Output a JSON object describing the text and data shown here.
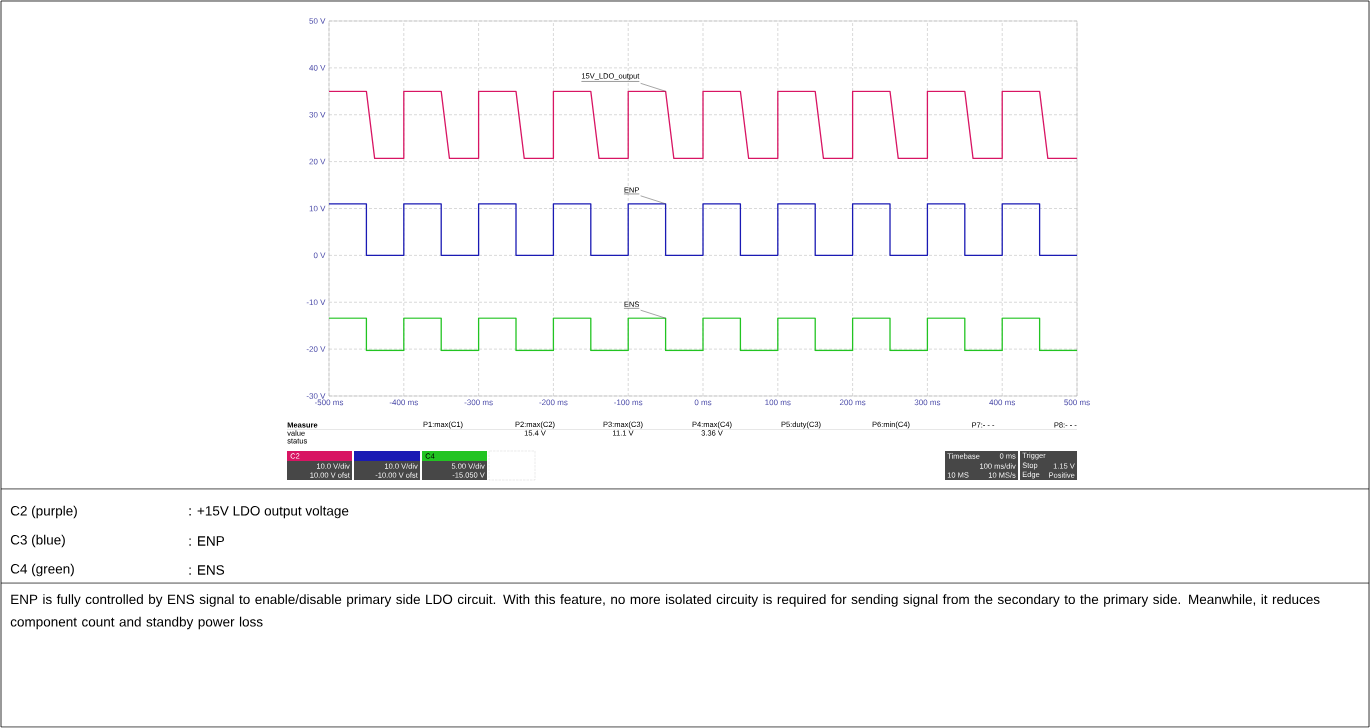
{
  "chart_data": {
    "type": "line",
    "series": [
      {
        "name": "15V_LDO_output",
        "color": "#d81563",
        "x": [
          -500,
          -450,
          -439,
          -400,
          -400,
          -350,
          -339,
          -300,
          -300,
          -250,
          -239,
          -200,
          -200,
          -150,
          -139,
          -100,
          -100,
          -50,
          -39,
          0,
          0,
          50,
          61,
          100,
          100,
          150,
          161,
          200,
          200,
          250,
          261,
          300,
          300,
          350,
          361,
          400,
          400,
          450,
          461,
          500
        ],
        "values": [
          35,
          35,
          20.7,
          20.7,
          35,
          35,
          20.7,
          20.7,
          35,
          35,
          20.7,
          20.7,
          35,
          35,
          20.7,
          20.7,
          35,
          35,
          20.7,
          20.7,
          35,
          35,
          20.7,
          20.7,
          35,
          35,
          20.7,
          20.7,
          35,
          35,
          20.7,
          20.7,
          35,
          35,
          20.7,
          20.7,
          35,
          35,
          20.7,
          20.7
        ]
      },
      {
        "name": "ENP",
        "color": "#1a1ab4",
        "x": [
          -500,
          -450,
          -450,
          -400,
          -400,
          -350,
          -350,
          -300,
          -300,
          -250,
          -250,
          -200,
          -200,
          -150,
          -150,
          -100,
          -100,
          -50,
          -50,
          0,
          0,
          50,
          50,
          100,
          100,
          150,
          150,
          200,
          200,
          250,
          250,
          300,
          300,
          350,
          350,
          400,
          400,
          450,
          450,
          500
        ],
        "values": [
          11,
          11,
          0,
          0,
          11,
          11,
          0,
          0,
          11,
          11,
          0,
          0,
          11,
          11,
          0,
          0,
          11,
          11,
          0,
          0,
          11,
          11,
          0,
          0,
          11,
          11,
          0,
          0,
          11,
          11,
          0,
          0,
          11,
          11,
          0,
          0,
          11,
          11,
          0,
          0
        ]
      },
      {
        "name": "ENS",
        "color": "#22c422",
        "x": [
          -500,
          -450,
          -450,
          -400,
          -400,
          -350,
          -350,
          -300,
          -300,
          -250,
          -250,
          -200,
          -200,
          -150,
          -150,
          -100,
          -100,
          -50,
          -50,
          0,
          0,
          50,
          50,
          100,
          100,
          150,
          150,
          200,
          200,
          250,
          250,
          300,
          300,
          350,
          350,
          400,
          400,
          450,
          450,
          500
        ],
        "values": [
          -13.4,
          -13.4,
          -20.3,
          -20.3,
          -13.4,
          -13.4,
          -20.3,
          -20.3,
          -13.4,
          -13.4,
          -20.3,
          -20.3,
          -13.4,
          -13.4,
          -20.3,
          -20.3,
          -13.4,
          -13.4,
          -20.3,
          -20.3,
          -13.4,
          -13.4,
          -20.3,
          -20.3,
          -13.4,
          -13.4,
          -20.3,
          -20.3,
          -13.4,
          -13.4,
          -20.3,
          -20.3,
          -13.4,
          -13.4,
          -20.3,
          -20.3,
          -13.4,
          -13.4,
          -20.3,
          -20.3
        ]
      }
    ],
    "xlim": [
      -500,
      500
    ],
    "ylim": [
      -30,
      50
    ],
    "xticks": [
      {
        "value": -500,
        "label": "-500 ms"
      },
      {
        "value": -400,
        "label": "-400 ms"
      },
      {
        "value": -300,
        "label": "-300 ms"
      },
      {
        "value": -200,
        "label": "-200 ms"
      },
      {
        "value": -100,
        "label": "-100 ms"
      },
      {
        "value": 0,
        "label": "0 ms"
      },
      {
        "value": 100,
        "label": "100 ms"
      },
      {
        "value": 200,
        "label": "200 ms"
      },
      {
        "value": 300,
        "label": "300 ms"
      },
      {
        "value": 400,
        "label": "400 ms"
      },
      {
        "value": 500,
        "label": "500 ms"
      }
    ],
    "yticks": [
      {
        "value": -30,
        "label": "-30 V"
      },
      {
        "value": -20,
        "label": "-20 V"
      },
      {
        "value": -10,
        "label": "-10 V"
      },
      {
        "value": 0,
        "label": "0 V"
      },
      {
        "value": 10,
        "label": "10 V"
      },
      {
        "value": 20,
        "label": "20 V"
      },
      {
        "value": 30,
        "label": "30 V"
      },
      {
        "value": 40,
        "label": "40 V"
      },
      {
        "value": 50,
        "label": "50 V"
      }
    ],
    "grid": true,
    "annotations": [
      "Measure",
      "value",
      "status",
      "P1:max(C1)",
      "P2:max(C2)",
      "P3:max(C3)",
      "P4:max(C4)",
      "P5:duty(C3)",
      "P6:min(C4)",
      "P7:- - -",
      "P8:- - -",
      "15.4 V",
      "11.1 V",
      "3.36 V",
      "C2",
      "10.0 V/div",
      "10.00 V ofst",
      "10.0 V/div",
      "-10.00 V ofst",
      "C4",
      "5.00 V/div",
      "-15.050 V",
      "Timebase",
      "0 ms",
      "100 ms/div",
      "10 MS",
      "10 MS/s",
      "Trigger",
      "Stop",
      "1.15 V",
      "Edge",
      "Positive",
      "C2 (purple)",
      ": +15V LDO output voltage",
      "C3 (blue)",
      ": ENP",
      "C4 (green)",
      ": ENS",
      "ENP is fully controlled by ENS signal to enable/disable primary side LDO circuit. With this feature, no more isolated circuity is required for sending signal from the secondary to the primary side. Meanwhile, it reduces component count and standby power loss"
    ]
  }
}
